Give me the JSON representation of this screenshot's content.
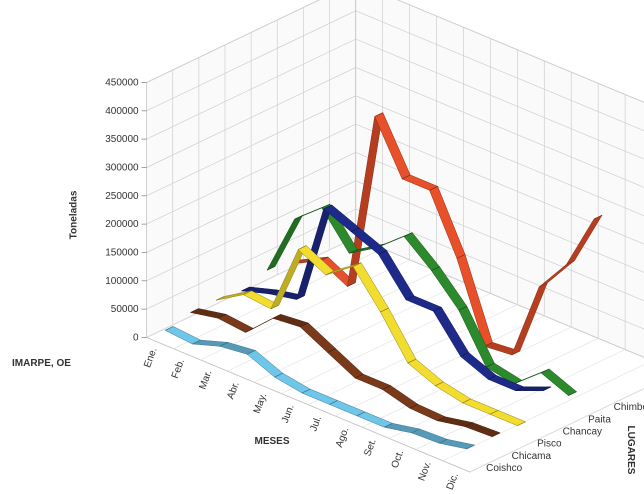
{
  "source_label": "IMARPE, OE",
  "chart_data": {
    "type": "line",
    "style": "3d-ribbon",
    "ylabel": "Toneladas",
    "xlabel": "MESES",
    "zlabel": "LUGARES",
    "ylim": [
      0,
      450000
    ],
    "yticks": [
      "0",
      "50000",
      "100000",
      "150000",
      "200000",
      "250000",
      "300000",
      "350000",
      "400000",
      "450000"
    ],
    "categories": [
      "Ene.",
      "Feb.",
      "Mar.",
      "Abr.",
      "May.",
      "Jun.",
      "Jul.",
      "Ago.",
      "Set.",
      "Oct.",
      "Nov.",
      "Dic."
    ],
    "grid": true,
    "series": [
      {
        "name": "Coishco",
        "color": "#6ec6ea",
        "values": [
          10000,
          6000,
          22000,
          28000,
          8000,
          0,
          0,
          0,
          0,
          10000,
          12000,
          22000
        ]
      },
      {
        "name": "Chicama",
        "color": "#7a3a1a",
        "values": [
          20000,
          30000,
          25000,
          70000,
          75000,
          50000,
          25000,
          25000,
          12000,
          10000,
          20000,
          22000
        ]
      },
      {
        "name": "Pisco",
        "color": "#f2dc2e",
        "values": [
          20000,
          50000,
          45000,
          170000,
          145000,
          180000,
          120000,
          50000,
          30000,
          20000,
          20000,
          20000
        ]
      },
      {
        "name": "Chancay",
        "color": "#1e2a8a",
        "values": [
          15000,
          30000,
          40000,
          220000,
          200000,
          180000,
          120000,
          120000,
          60000,
          40000,
          40000,
          60000
        ]
      },
      {
        "name": "Paita",
        "color": "#2c8a2c",
        "values": [
          30000,
          140000,
          180000,
          120000,
          150000,
          190000,
          150000,
          100000,
          20000,
          10000,
          50000,
          30000
        ]
      },
      {
        "name": "Chimbote",
        "color": "#e8502a",
        "values": [
          20000,
          45000,
          20000,
          340000,
          250000,
          250000,
          150000,
          15000,
          20000,
          160000,
          220000,
          320000
        ]
      }
    ]
  }
}
